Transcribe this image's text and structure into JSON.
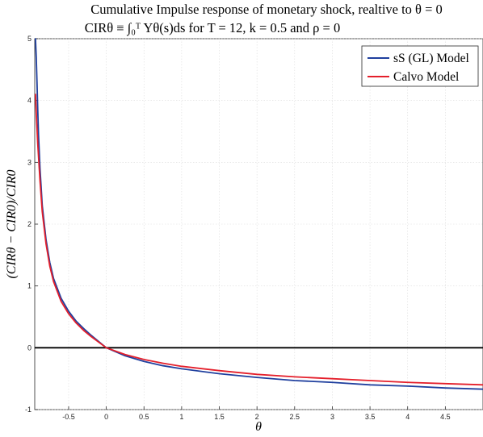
{
  "chart_data": {
    "type": "line",
    "title": "Cumulative Impulse response of monetary shock, realtive to θ = 0",
    "subtitle": "CIRθ ≡ ∫₀ᵀ Yθ(s)ds for T = 12, k = 0.5 and ρ = 0",
    "xlabel": "θ",
    "ylabel": "(CIRθ − CIR0)/CIR0",
    "xlim": [
      -0.95,
      5.0
    ],
    "ylim": [
      -1,
      5
    ],
    "x_ticks": [
      "-0.5",
      "0",
      "0.5",
      "1",
      "1.5",
      "2",
      "2.5",
      "3",
      "3.5",
      "4",
      "4.5"
    ],
    "y_ticks": [
      "-1",
      "0",
      "1",
      "2",
      "3",
      "4",
      "5"
    ],
    "grid": true,
    "legend_position": "top-right",
    "reference_line": {
      "y": 0,
      "color": "#000000"
    },
    "series": [
      {
        "name": "sS (GL) Model",
        "color": "#1f3f9e",
        "x": [
          -0.94,
          -0.93,
          -0.92,
          -0.91,
          -0.9,
          -0.88,
          -0.85,
          -0.8,
          -0.75,
          -0.7,
          -0.6,
          -0.5,
          -0.4,
          -0.3,
          -0.2,
          -0.1,
          0,
          0.25,
          0.5,
          0.75,
          1,
          1.5,
          2,
          2.5,
          3,
          3.5,
          4,
          4.5,
          5.0
        ],
        "y": [
          5.0,
          4.7,
          4.3,
          3.85,
          3.45,
          2.9,
          2.3,
          1.75,
          1.38,
          1.12,
          0.8,
          0.59,
          0.43,
          0.31,
          0.2,
          0.1,
          0.0,
          -0.13,
          -0.22,
          -0.29,
          -0.34,
          -0.42,
          -0.48,
          -0.53,
          -0.56,
          -0.6,
          -0.62,
          -0.65,
          -0.67
        ]
      },
      {
        "name": "Calvo Model",
        "color": "#e41f2b",
        "x": [
          -0.94,
          -0.93,
          -0.92,
          -0.91,
          -0.9,
          -0.88,
          -0.85,
          -0.8,
          -0.75,
          -0.7,
          -0.6,
          -0.5,
          -0.4,
          -0.3,
          -0.2,
          -0.1,
          0,
          0.25,
          0.5,
          0.75,
          1,
          1.5,
          2,
          2.5,
          3,
          3.5,
          4,
          4.5,
          5.0
        ],
        "y": [
          4.1,
          3.8,
          3.55,
          3.3,
          3.1,
          2.7,
          2.2,
          1.68,
          1.32,
          1.07,
          0.75,
          0.55,
          0.4,
          0.28,
          0.18,
          0.09,
          0.0,
          -0.11,
          -0.19,
          -0.25,
          -0.3,
          -0.37,
          -0.43,
          -0.47,
          -0.5,
          -0.53,
          -0.56,
          -0.58,
          -0.6
        ]
      }
    ]
  }
}
